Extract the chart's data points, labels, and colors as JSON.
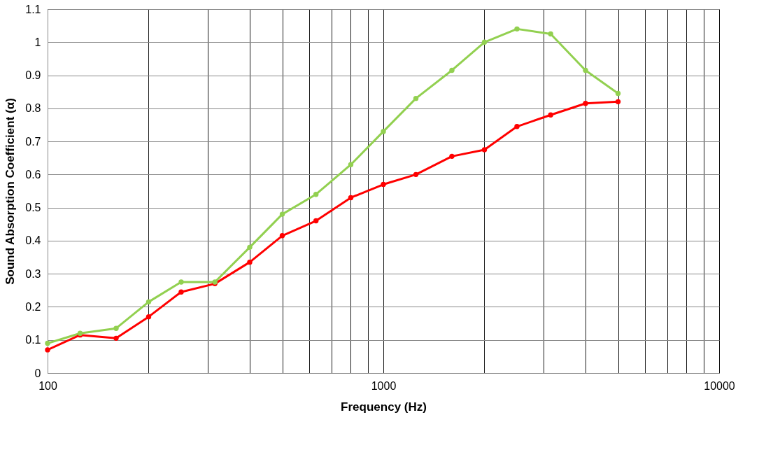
{
  "chart_data": {
    "type": "line",
    "xlabel": "Frequency (Hz)",
    "ylabel": "Sound Absorption Coefficient (α)",
    "x": [
      100,
      125,
      160,
      200,
      250,
      315,
      400,
      500,
      630,
      800,
      1000,
      1250,
      1600,
      2000,
      2500,
      3150,
      4000,
      5000
    ],
    "series": [
      {
        "color": "#92d050",
        "values": [
          0.09,
          0.12,
          0.135,
          0.215,
          0.275,
          0.275,
          0.38,
          0.48,
          0.54,
          0.63,
          0.73,
          0.83,
          0.915,
          1.0,
          1.04,
          1.025,
          0.915,
          0.845
        ]
      },
      {
        "color": "#ff0000",
        "values": [
          0.07,
          0.115,
          0.105,
          0.17,
          0.245,
          0.27,
          0.335,
          0.415,
          0.46,
          0.53,
          0.57,
          0.6,
          0.655,
          0.675,
          0.745,
          0.78,
          0.815,
          0.82
        ]
      }
    ],
    "log": "x",
    "xlim": [
      100,
      10000
    ],
    "xticks": [
      100,
      {
        "value": 200,
        "label": null
      },
      {
        "value": 300,
        "label": null
      },
      {
        "value": 400,
        "label": null
      },
      {
        "value": 500,
        "label": null
      },
      {
        "value": 600,
        "label": null
      },
      {
        "value": 700,
        "label": null
      },
      {
        "value": 800,
        "label": null
      },
      {
        "value": 900,
        "label": null
      },
      1000,
      {
        "value": 2000,
        "label": null
      },
      {
        "value": 3000,
        "label": null
      },
      {
        "value": 4000,
        "label": null
      },
      {
        "value": 5000,
        "label": null
      },
      {
        "value": 6000,
        "label": null
      },
      {
        "value": 7000,
        "label": null
      },
      {
        "value": 8000,
        "label": null
      },
      {
        "value": 9000,
        "label": null
      },
      10000
    ],
    "ylim": [
      0,
      1.1
    ],
    "yticks": [
      0,
      0.1,
      0.2,
      0.3,
      0.4,
      0.5,
      0.6,
      0.7,
      0.8,
      0.9,
      1,
      1.1
    ],
    "grid": true,
    "marker": "circle",
    "line_style": "solid"
  }
}
